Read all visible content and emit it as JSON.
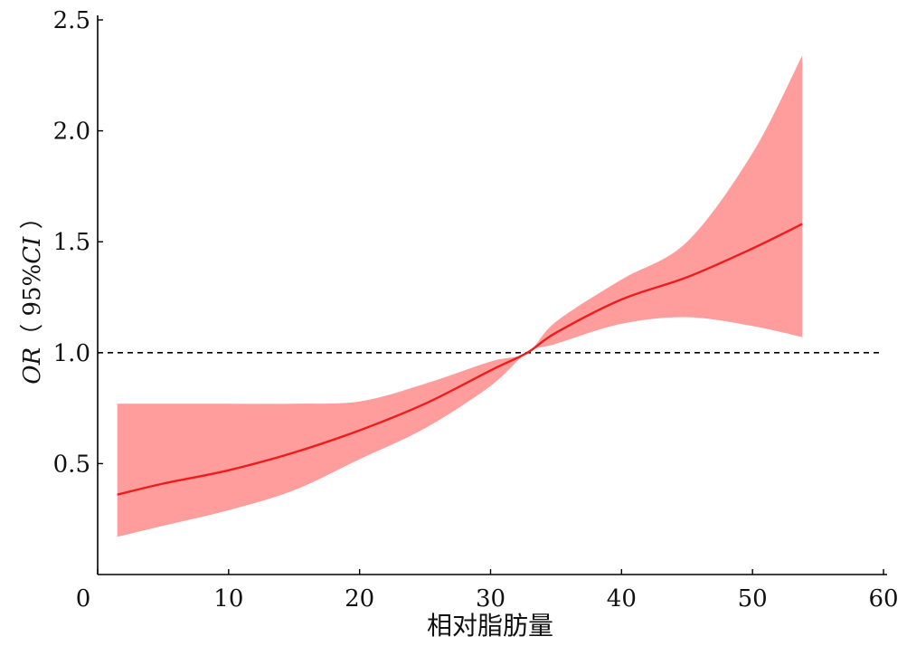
{
  "chart_data": {
    "type": "line",
    "title": "",
    "xlabel": "相对脂肪量",
    "ylabel": {
      "parts": [
        {
          "text": "OR",
          "italic": true
        },
        {
          "text": "（ 95%",
          "italic": false
        },
        {
          "text": "CI",
          "italic": true
        },
        {
          "text": " ）",
          "italic": false
        }
      ]
    },
    "xlim": [
      0,
      60
    ],
    "ylim": [
      0,
      2.5
    ],
    "xticks": [
      0,
      10,
      20,
      30,
      40,
      50,
      60
    ],
    "xtick_labels": [
      "0",
      "10",
      "20",
      "30",
      "40",
      "50",
      "60"
    ],
    "yticks": [
      0.5,
      1.0,
      1.5,
      2.0,
      2.5
    ],
    "ytick_labels": [
      "0.5",
      "1.0",
      "1.5",
      "2.0",
      "2.5"
    ],
    "grid": false,
    "reference_line": {
      "y": 1.0,
      "style": "dashed",
      "color": "#000000"
    },
    "series": [
      {
        "kind": "line",
        "color": "#ee1c1c",
        "x": [
          1.5,
          5,
          10,
          15,
          20,
          25,
          30,
          32.8,
          35,
          40,
          45,
          50,
          53.8
        ],
        "y": [
          0.36,
          0.41,
          0.47,
          0.55,
          0.65,
          0.77,
          0.92,
          1.0,
          1.09,
          1.24,
          1.34,
          1.47,
          1.58
        ]
      },
      {
        "kind": "band",
        "color": "#ff9c9c",
        "x": [
          1.5,
          5,
          10,
          15,
          20,
          25,
          30,
          32.8,
          35,
          40,
          45,
          50,
          53.8
        ],
        "lower": [
          0.17,
          0.22,
          0.29,
          0.38,
          0.52,
          0.66,
          0.85,
          1.0,
          1.04,
          1.13,
          1.16,
          1.12,
          1.07
        ],
        "upper": [
          0.77,
          0.77,
          0.77,
          0.77,
          0.78,
          0.86,
          0.96,
          1.0,
          1.14,
          1.33,
          1.5,
          1.9,
          2.34
        ]
      }
    ]
  }
}
